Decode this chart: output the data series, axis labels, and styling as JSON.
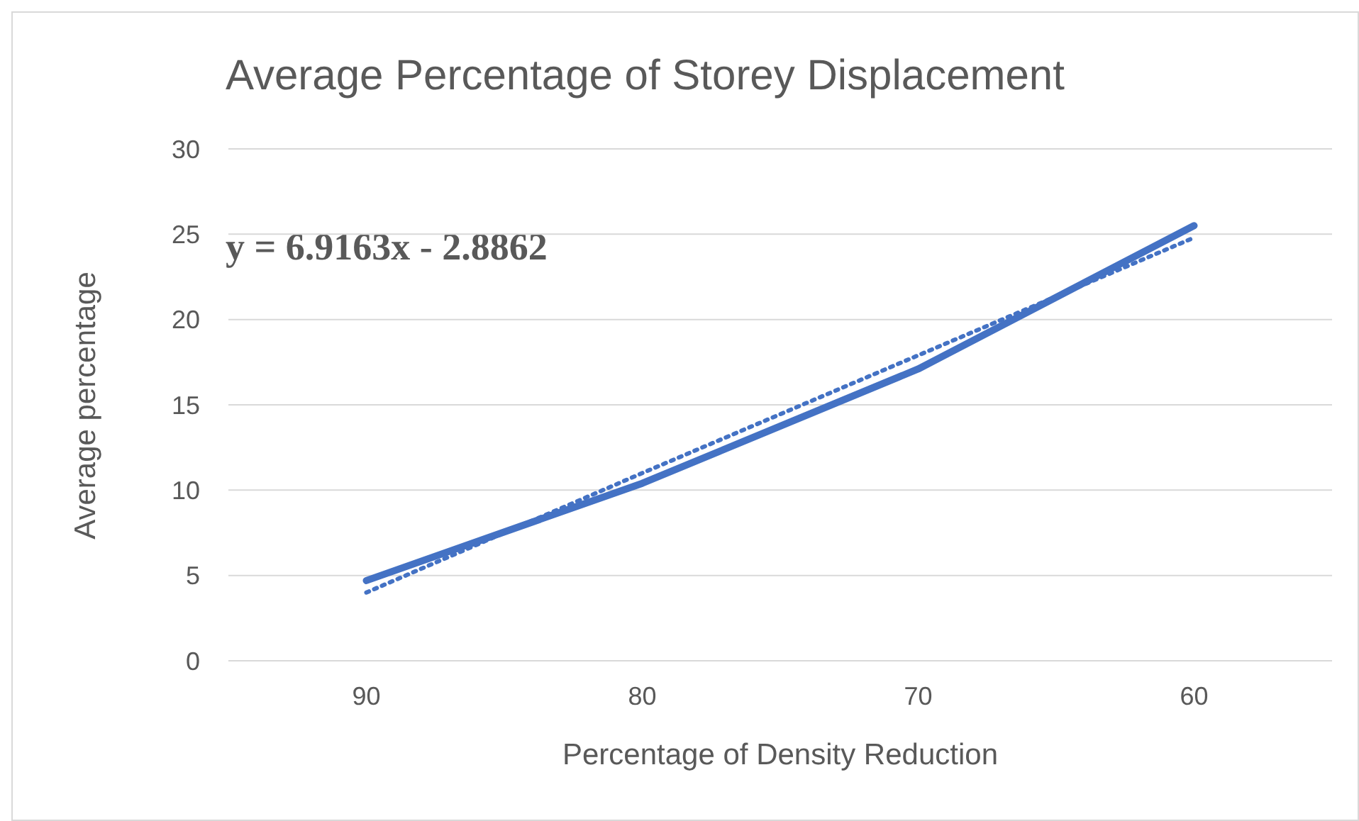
{
  "chart_data": {
    "type": "line",
    "title": "Average Percentage of Storey Displacement",
    "xlabel": "Percentage of Density Reduction",
    "ylabel": "Average percentage",
    "categories": [
      "90",
      "80",
      "70",
      "60"
    ],
    "series": [
      {
        "color": "#4472c4",
        "values": [
          4.7,
          10.4,
          17.1,
          25.5
        ]
      },
      {
        "type": "line",
        "color": "#4472c4",
        "line_style": "dotted",
        "values": [
          4.0,
          11.0,
          17.9,
          24.8
        ]
      }
    ],
    "ylim": [
      0,
      30
    ],
    "yticks": [
      0,
      5,
      10,
      15,
      20,
      25,
      30
    ],
    "grid": "y",
    "annotations": [
      "y = 6.9163x - 2.8862"
    ]
  }
}
